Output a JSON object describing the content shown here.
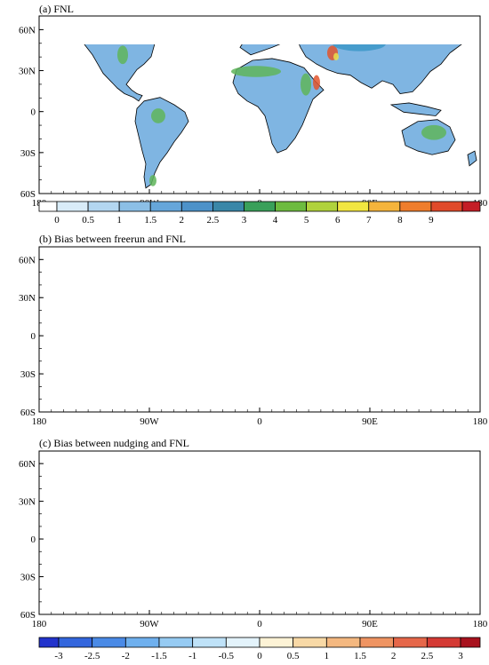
{
  "panels": [
    {
      "id": "a",
      "title": "(a) FNL",
      "lat_labels": [
        "60N",
        "30N",
        "0",
        "30S",
        "60S"
      ],
      "lon_labels": [
        "180",
        "90W",
        "0",
        "90E",
        "180"
      ]
    },
    {
      "id": "b",
      "title": "(b) Bias between freerun and FNL",
      "lat_labels": [
        "60N",
        "30N",
        "0",
        "30S",
        "60S"
      ],
      "lon_labels": [
        "180",
        "90W",
        "0",
        "90E",
        "180"
      ]
    },
    {
      "id": "c",
      "title": "(c) Bias between nudging and FNL",
      "lat_labels": [
        "60N",
        "30N",
        "0",
        "30S",
        "60S"
      ],
      "lon_labels": [
        "180",
        "90W",
        "0",
        "90E",
        "180"
      ]
    }
  ],
  "colorbar_top": {
    "labels": [
      "0",
      "0.5",
      "1",
      "1.5",
      "2",
      "2.5",
      "3",
      "4",
      "5",
      "6",
      "7",
      "8",
      "9"
    ],
    "colors": [
      "#ffffff",
      "#d9ecf8",
      "#b3d6f0",
      "#8cbfe6",
      "#66a6da",
      "#4d92c9",
      "#3a87a8",
      "#3aa05a",
      "#6dbb3f",
      "#b0d23c",
      "#f2e640",
      "#f5b43c",
      "#ef7d2c",
      "#e04a2a",
      "#c41e26"
    ]
  },
  "colorbar_bottom": {
    "labels": [
      "-3",
      "-2.5",
      "-2",
      "-1.5",
      "-1",
      "-0.5",
      "0",
      "0.5",
      "1",
      "1.5",
      "2",
      "2.5",
      "3"
    ],
    "colors": [
      "#2233cc",
      "#3366dd",
      "#4a8ae6",
      "#6fb0ee",
      "#96cbf3",
      "#bfe2f8",
      "#e3f3fb",
      "#fdf3d6",
      "#f8d9a6",
      "#f4b880",
      "#ef9462",
      "#e6674a",
      "#d43a34",
      "#a8121e"
    ]
  },
  "map_colors": {
    "ocean": "#ffffff",
    "coast": "#000000",
    "a_land": "#7fb5e2",
    "a_high": "#3c98c8",
    "a_green": "#5fb55a",
    "a_hot": "#e2552d",
    "a_yellow": "#e9df4c",
    "b_land": "#f6c79a",
    "b_hot": "#d8402f",
    "b_mid": "#ee8a62",
    "b_cold": "#b8def3",
    "c_land": "#f8dcae",
    "c_cold": "#a6d4f0",
    "c_hot": "#e5704c"
  }
}
